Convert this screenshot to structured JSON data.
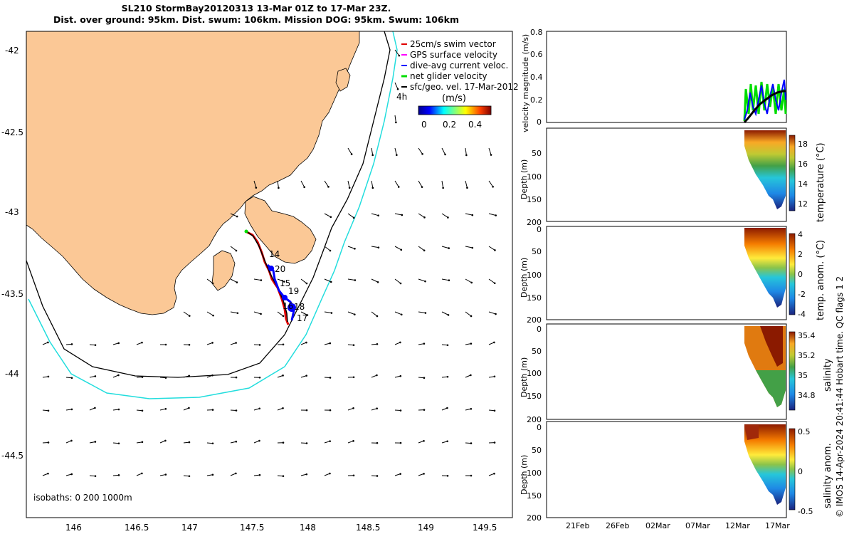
{
  "header": {
    "title_line1": "SL210 StormBay20120313 13-Mar 01Z to 17-Mar 23Z.",
    "title_line2": "Dist. over ground: 95km. Dist. swum: 106km. Mission DOG: 95km. Swum: 106km"
  },
  "map": {
    "legend": [
      {
        "label": "25cm/s swim vector",
        "color": "#e00000"
      },
      {
        "label": "GPS surface velocity",
        "color": "#ff00ff"
      },
      {
        "label": "dive-avg current veloc.",
        "color": "#0000ff"
      },
      {
        "label": "net glider velocity",
        "color": "#00dd00"
      },
      {
        "label": "sfc/geo. vel. 17-Mar-2012",
        "color": "#000000"
      }
    ],
    "legend_extra": "4h",
    "colorbar_label": "(m/s)",
    "colorbar_ticks": [
      "0",
      "0.2",
      "0.4"
    ],
    "isobath_label": "isobaths: 0   200  1000m",
    "xticks": [
      "146",
      "146.5",
      "147",
      "147.5",
      "148",
      "148.5",
      "149",
      "149.5"
    ],
    "yticks": [
      "-42",
      "-42.5",
      "-43",
      "-43.5",
      "-44",
      "-44.5"
    ],
    "track_labels": [
      "14",
      "20",
      "15",
      "19",
      "18",
      "16",
      "17"
    ],
    "colors": {
      "land": "#fbc896",
      "isobath_200": "#000000",
      "isobath_1000": "#22dddd"
    }
  },
  "chart_data": [
    {
      "type": "line",
      "title": "",
      "ylabel": "velocity magnitude (m/s)",
      "ylim": [
        0,
        0.8
      ],
      "yticks": [
        "0",
        "0.2",
        "0.4",
        "0.6",
        "0.8"
      ]
    },
    {
      "type": "heatmap",
      "ylabel": "Depth (m)",
      "colorbar_label": "temperature (°C)",
      "yticks": [
        "50",
        "100",
        "150",
        "200"
      ],
      "cbar_ticks": [
        "18",
        "16",
        "14",
        "12"
      ],
      "ylim": [
        0,
        200
      ]
    },
    {
      "type": "heatmap",
      "ylabel": "Depth (m)",
      "colorbar_label": "temp. anom. (°C)",
      "yticks": [
        "0",
        "50",
        "100",
        "150",
        "200"
      ],
      "cbar_ticks": [
        "4",
        "2",
        "0",
        "-2",
        "-4"
      ],
      "ylim": [
        0,
        200
      ]
    },
    {
      "type": "heatmap",
      "ylabel": "Depth (m)",
      "colorbar_label": "salinity",
      "yticks": [
        "0",
        "50",
        "100",
        "150",
        "200"
      ],
      "cbar_ticks": [
        "35.4",
        "35.2",
        "35",
        "34.8"
      ],
      "ylim": [
        0,
        200
      ]
    },
    {
      "type": "heatmap",
      "ylabel": "Depth (m)",
      "colorbar_label": "salinity anom.",
      "yticks": [
        "0",
        "50",
        "100",
        "150",
        "200"
      ],
      "cbar_ticks": [
        "0.5",
        "0",
        "-0.5"
      ],
      "xticks": [
        "21Feb",
        "26Feb",
        "02Mar",
        "07Mar",
        "12Mar",
        "17Mar"
      ],
      "ylim": [
        0,
        200
      ]
    }
  ],
  "footer": {
    "credit": "© IMOS 14-Apr-2024 20:41:44 Hobart time. QC flags 1  2"
  }
}
